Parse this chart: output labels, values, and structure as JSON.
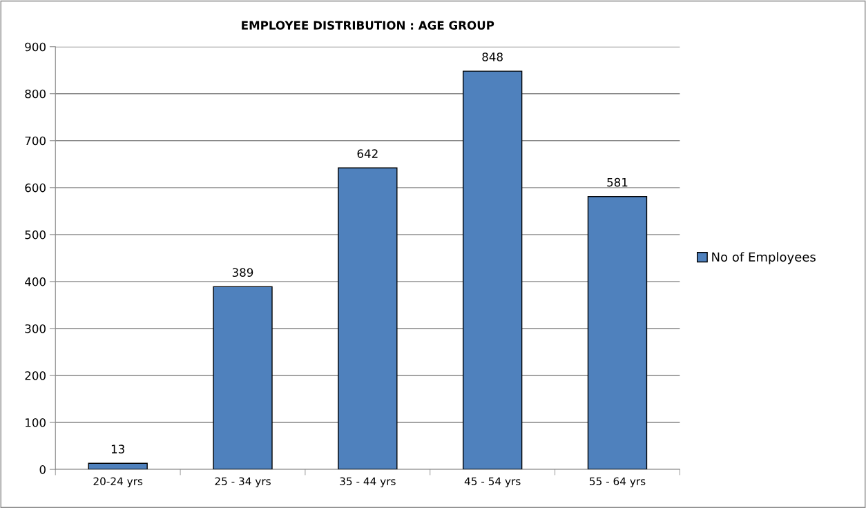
{
  "chart_data": {
    "type": "bar",
    "title": "EMPLOYEE DISTRIBUTION : AGE GROUP",
    "categories": [
      "20-24 yrs",
      "25 - 34 yrs",
      "35 - 44 yrs",
      "45 - 54 yrs",
      "55 - 64 yrs"
    ],
    "series": [
      {
        "name": "No of Employees",
        "color": "#4f81bd",
        "values": [
          13,
          389,
          642,
          848,
          581
        ]
      }
    ],
    "ylim": [
      0,
      900
    ],
    "yticks": [
      0,
      100,
      200,
      300,
      400,
      500,
      600,
      700,
      800,
      900
    ],
    "grid": "y",
    "legend": "right",
    "data_labels": true
  }
}
